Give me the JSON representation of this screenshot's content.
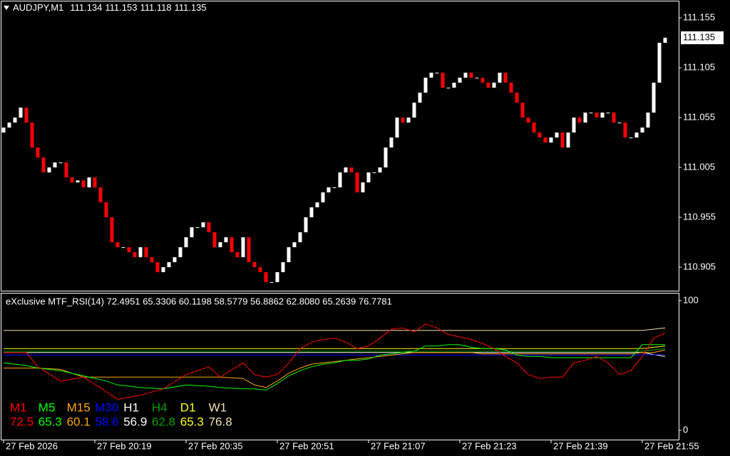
{
  "chart_data": [
    {
      "type": "candlestick",
      "title": "AUDJPY,M1",
      "ohlc_header": [
        111.134,
        111.153,
        111.118,
        111.135
      ],
      "up_color": "#ffffff",
      "down_color": "#ff0000",
      "last_price": 111.135,
      "xlim": [
        -0.625,
        118.375
      ],
      "ylim": [
        110.8814,
        111.1729
      ],
      "yticks": [
        111.155,
        111.105,
        111.055,
        111.005,
        110.955,
        110.905
      ],
      "open": 111.04,
      "close": [
        111.045,
        111.05,
        111.055,
        111.065,
        111.05,
        111.025,
        111.015,
        111.0,
        111.005,
        111.01,
        111.01,
        110.995,
        110.99,
        110.992,
        110.985,
        110.995,
        110.985,
        110.97,
        110.955,
        110.93,
        110.925,
        110.925,
        110.92,
        110.915,
        110.925,
        110.915,
        110.91,
        110.9,
        110.905,
        110.91,
        110.915,
        110.925,
        110.935,
        110.945,
        110.945,
        110.95,
        110.94,
        110.925,
        110.93,
        110.935,
        110.92,
        110.915,
        110.935,
        110.91,
        110.905,
        110.9,
        110.89,
        110.89,
        110.9,
        110.91,
        110.925,
        110.93,
        110.94,
        110.955,
        110.965,
        110.97,
        110.98,
        110.985,
        110.985,
        111.0,
        111.005,
        111.0,
        110.98,
        110.99,
        111.0,
        111.0,
        111.005,
        111.025,
        111.035,
        111.055,
        111.05,
        111.055,
        111.07,
        111.08,
        111.095,
        111.1,
        111.1,
        111.085,
        111.085,
        111.09,
        111.095,
        111.1,
        111.095,
        111.095,
        111.09,
        111.085,
        111.09,
        111.1,
        111.09,
        111.08,
        111.07,
        111.055,
        111.05,
        111.04,
        111.035,
        111.03,
        111.035,
        111.04,
        111.025,
        111.04,
        111.055,
        111.05,
        111.06,
        111.06,
        111.055,
        111.06,
        111.06,
        111.05,
        111.05,
        111.035,
        111.035,
        111.04,
        111.045,
        111.06,
        111.09,
        111.13,
        111.135
      ]
    },
    {
      "type": "line",
      "title": "eXclusive MTF_RSI(14) 72.4951 65.3306 60.1198 58.5779 56.8862 62.8080 65.2639 76.7781",
      "xlim": [
        -0.625,
        118.375
      ],
      "ylim": [
        -7.7,
        106
      ],
      "yticks": [
        100,
        0
      ],
      "xticks": [
        {
          "value": 0,
          "label": "27 Feb 2026"
        },
        {
          "value": 16,
          "label": "27 Feb 20:19"
        },
        {
          "value": 32,
          "label": "27 Feb 20:35"
        },
        {
          "value": 48,
          "label": "27 Feb 20:51"
        },
        {
          "value": 64,
          "label": "27 Feb 21:07"
        },
        {
          "value": 80,
          "label": "27 Feb 21:23"
        },
        {
          "value": 96,
          "label": "27 Feb 21:39"
        },
        {
          "value": 112,
          "label": "27 Feb 21:55"
        }
      ],
      "series": [
        {
          "name": "W1",
          "color": "#f5deb3",
          "last": 76.8,
          "x": [
            0,
            112,
            116
          ],
          "values": [
            77,
            77,
            79
          ]
        },
        {
          "name": "D1",
          "color": "#ffff00",
          "last": 65.3,
          "x": [
            0,
            112,
            116
          ],
          "values": [
            63,
            63,
            65
          ]
        },
        {
          "name": "H4",
          "color": "#00a000",
          "last": 62.8,
          "x": [
            0,
            112,
            116
          ],
          "values": [
            61,
            61,
            63
          ]
        },
        {
          "name": "H1",
          "color": "#ffffff",
          "last": 56.9,
          "x": [
            0,
            112,
            116
          ],
          "values": [
            60,
            60,
            57
          ]
        },
        {
          "name": "M30",
          "color": "#0000ff",
          "last": 58.6,
          "x": [
            0,
            112,
            116
          ],
          "values": [
            58,
            58,
            58.6
          ]
        },
        {
          "name": "M15",
          "color": "#ffa500",
          "last": 60.1,
          "x": [
            0,
            4,
            6,
            10,
            14,
            18,
            20,
            24,
            28,
            32,
            36,
            38,
            42,
            44,
            46,
            48,
            50,
            52,
            54,
            56,
            58,
            60,
            62,
            64,
            66,
            68,
            70,
            72,
            74,
            76,
            78,
            80,
            82,
            84,
            86,
            88,
            90,
            92,
            94,
            96,
            98,
            100,
            102,
            104,
            106,
            108,
            110,
            112,
            114,
            116
          ],
          "values": [
            48,
            48,
            48,
            47,
            41,
            41,
            41,
            41,
            41,
            41,
            41,
            41,
            40,
            35,
            33,
            38,
            44,
            48,
            51,
            52,
            53,
            54,
            55,
            56,
            57,
            58,
            59,
            60,
            60,
            60,
            60,
            60,
            60,
            59,
            59,
            59,
            59,
            59,
            59,
            59,
            59,
            59,
            59,
            59,
            59,
            59,
            59,
            60,
            60,
            62
          ]
        },
        {
          "name": "M5",
          "color": "#00ff00",
          "last": 65.3,
          "x": [
            0,
            4,
            6,
            10,
            14,
            18,
            20,
            24,
            28,
            32,
            36,
            38,
            42,
            44,
            46,
            48,
            50,
            52,
            54,
            56,
            58,
            60,
            62,
            64,
            66,
            68,
            70,
            72,
            74,
            76,
            78,
            80,
            82,
            84,
            86,
            88,
            90,
            92,
            94,
            96,
            98,
            100,
            102,
            104,
            106,
            108,
            110,
            112,
            114,
            116
          ],
          "values": [
            52,
            50,
            48,
            46,
            42,
            38,
            35,
            33,
            32,
            35,
            34,
            33,
            32,
            32,
            31,
            36,
            42,
            46,
            49,
            51,
            52,
            54,
            54,
            55,
            58,
            59,
            60,
            61,
            65,
            65,
            66,
            66,
            64,
            63,
            63,
            62,
            58,
            57,
            57,
            56,
            56,
            56,
            56,
            56,
            56,
            56,
            56,
            66,
            66,
            66
          ]
        },
        {
          "name": "M1",
          "color": "#ff0000",
          "last": 72.5,
          "x": [
            0,
            4,
            6,
            10,
            14,
            18,
            20,
            24,
            28,
            32,
            36,
            38,
            42,
            44,
            46,
            48,
            50,
            52,
            54,
            56,
            58,
            60,
            62,
            64,
            66,
            68,
            70,
            72,
            74,
            76,
            78,
            80,
            82,
            84,
            86,
            88,
            90,
            92,
            94,
            96,
            98,
            100,
            102,
            104,
            106,
            108,
            110,
            112,
            114,
            116
          ],
          "values": [
            60,
            60,
            49,
            38,
            41,
            30,
            24,
            27,
            32,
            43,
            49,
            41,
            52,
            43,
            41,
            43,
            52,
            63,
            68,
            70,
            71,
            68,
            63,
            65,
            71,
            78,
            79,
            76,
            82,
            79,
            74,
            72,
            70,
            67,
            63,
            57,
            52,
            43,
            40,
            41,
            41,
            52,
            54,
            57,
            52,
            43,
            46,
            57,
            71,
            75
          ]
        }
      ],
      "legend_order": [
        "M1",
        "M5",
        "M15",
        "M30",
        "H1",
        "H4",
        "D1",
        "W1"
      ]
    }
  ]
}
